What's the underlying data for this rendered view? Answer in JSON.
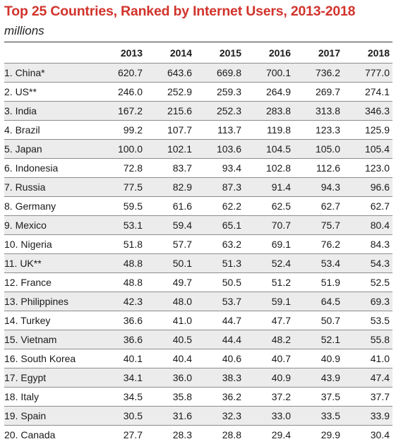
{
  "chart_data": {
    "type": "table",
    "title": "Top 25 Countries, Ranked by Internet Users, 2013-2018",
    "subtitle": "millions",
    "columns": [
      "2013",
      "2014",
      "2015",
      "2016",
      "2017",
      "2018"
    ],
    "rows": [
      {
        "label": "1. China*",
        "values": [
          "620.7",
          "643.6",
          "669.8",
          "700.1",
          "736.2",
          "777.0"
        ]
      },
      {
        "label": "2. US**",
        "values": [
          "246.0",
          "252.9",
          "259.3",
          "264.9",
          "269.7",
          "274.1"
        ]
      },
      {
        "label": "3. India",
        "values": [
          "167.2",
          "215.6",
          "252.3",
          "283.8",
          "313.8",
          "346.3"
        ]
      },
      {
        "label": "4. Brazil",
        "values": [
          "99.2",
          "107.7",
          "113.7",
          "119.8",
          "123.3",
          "125.9"
        ]
      },
      {
        "label": "5. Japan",
        "values": [
          "100.0",
          "102.1",
          "103.6",
          "104.5",
          "105.0",
          "105.4"
        ]
      },
      {
        "label": "6. Indonesia",
        "values": [
          "72.8",
          "83.7",
          "93.4",
          "102.8",
          "112.6",
          "123.0"
        ]
      },
      {
        "label": "7. Russia",
        "values": [
          "77.5",
          "82.9",
          "87.3",
          "91.4",
          "94.3",
          "96.6"
        ]
      },
      {
        "label": "8. Germany",
        "values": [
          "59.5",
          "61.6",
          "62.2",
          "62.5",
          "62.7",
          "62.7"
        ]
      },
      {
        "label": "9. Mexico",
        "values": [
          "53.1",
          "59.4",
          "65.1",
          "70.7",
          "75.7",
          "80.4"
        ]
      },
      {
        "label": "10. Nigeria",
        "values": [
          "51.8",
          "57.7",
          "63.2",
          "69.1",
          "76.2",
          "84.3"
        ]
      },
      {
        "label": "11. UK**",
        "values": [
          "48.8",
          "50.1",
          "51.3",
          "52.4",
          "53.4",
          "54.3"
        ]
      },
      {
        "label": "12. France",
        "values": [
          "48.8",
          "49.7",
          "50.5",
          "51.2",
          "51.9",
          "52.5"
        ]
      },
      {
        "label": "13. Philippines",
        "values": [
          "42.3",
          "48.0",
          "53.7",
          "59.1",
          "64.5",
          "69.3"
        ]
      },
      {
        "label": "14. Turkey",
        "values": [
          "36.6",
          "41.0",
          "44.7",
          "47.7",
          "50.7",
          "53.5"
        ]
      },
      {
        "label": "15. Vietnam",
        "values": [
          "36.6",
          "40.5",
          "44.4",
          "48.2",
          "52.1",
          "55.8"
        ]
      },
      {
        "label": "16. South Korea",
        "values": [
          "40.1",
          "40.4",
          "40.6",
          "40.7",
          "40.9",
          "41.0"
        ]
      },
      {
        "label": "17. Egypt",
        "values": [
          "34.1",
          "36.0",
          "38.3",
          "40.9",
          "43.9",
          "47.4"
        ]
      },
      {
        "label": "18. Italy",
        "values": [
          "34.5",
          "35.8",
          "36.2",
          "37.2",
          "37.5",
          "37.7"
        ]
      },
      {
        "label": "19. Spain",
        "values": [
          "30.5",
          "31.6",
          "32.3",
          "33.0",
          "33.5",
          "33.9"
        ]
      },
      {
        "label": "20. Canada",
        "values": [
          "27.7",
          "28.3",
          "28.8",
          "29.4",
          "29.9",
          "30.4"
        ]
      }
    ]
  },
  "colors": {
    "title": "#d1332b",
    "stripe": "#ececec",
    "rule": "#8c8c8c"
  }
}
